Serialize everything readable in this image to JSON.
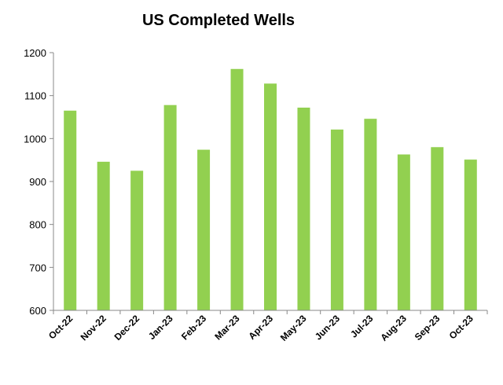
{
  "chart_data": {
    "type": "bar",
    "title": "US Completed Wells",
    "xlabel": "",
    "ylabel": "",
    "categories": [
      "Oct-22",
      "Nov-22",
      "Dec-22",
      "Jan-23",
      "Feb-23",
      "Mar-23",
      "Apr-23",
      "May-23",
      "Jun-23",
      "Jul-23",
      "Aug-23",
      "Sep-23",
      "Oct-23"
    ],
    "values": [
      1065,
      946,
      925,
      1078,
      974,
      1162,
      1128,
      1072,
      1021,
      1046,
      963,
      980,
      951
    ],
    "ylim": [
      600,
      1200
    ],
    "yticks": [
      600,
      700,
      800,
      900,
      1000,
      1100,
      1200
    ],
    "bar_color": "#92D050",
    "grid": false,
    "legend": "none"
  }
}
